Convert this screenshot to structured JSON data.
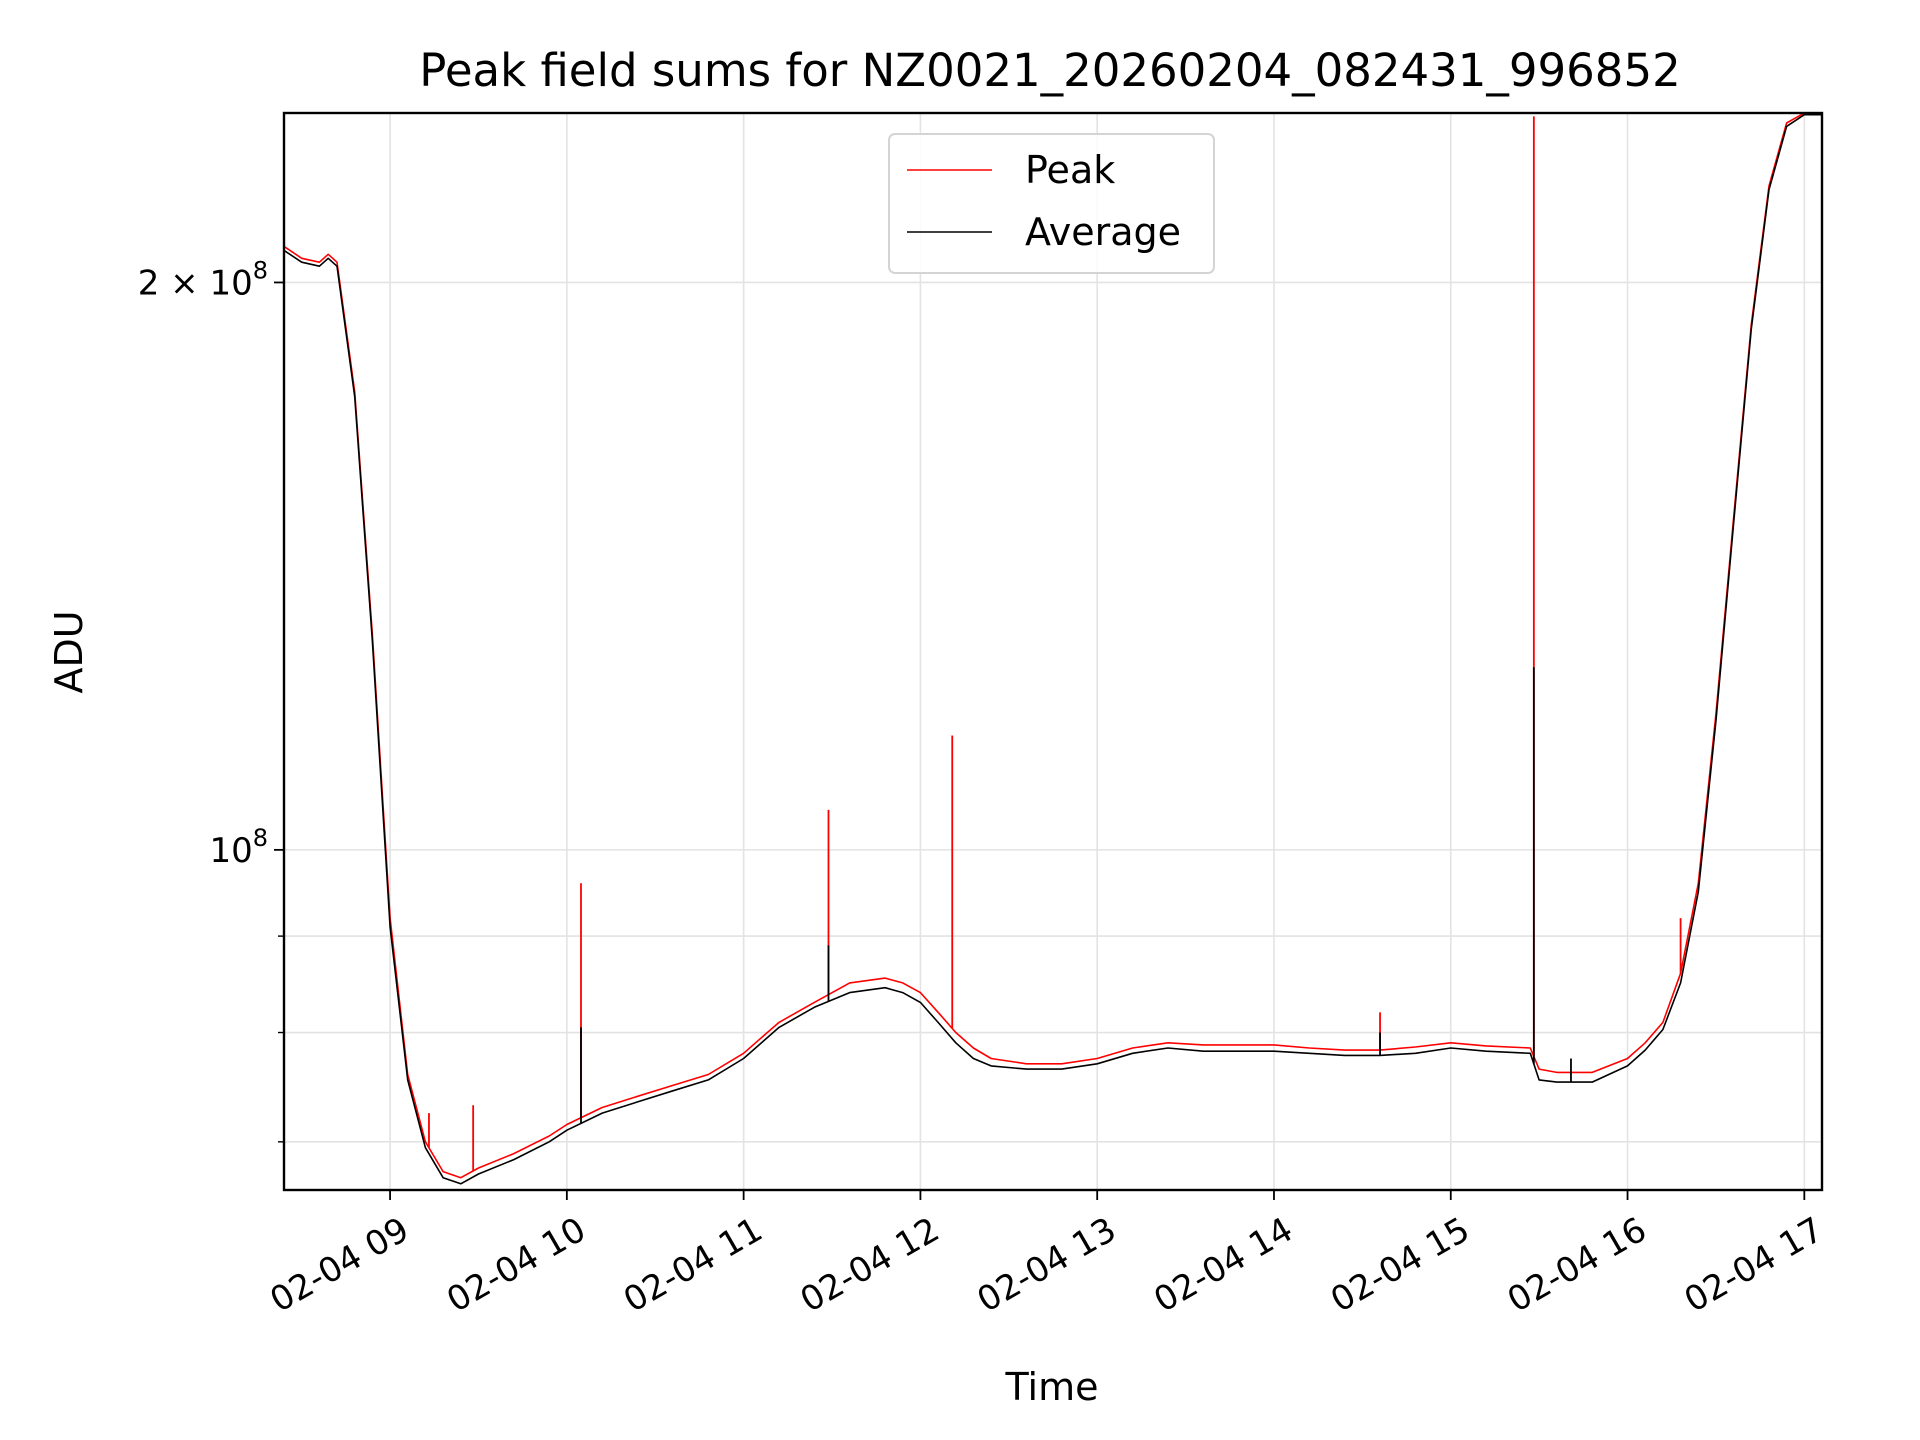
{
  "chart_data": {
    "type": "line",
    "title": "Peak field sums for NZ0021_20260204_082431_996852",
    "xlabel": "Time",
    "ylabel": "ADU",
    "yscale": "log",
    "xlim": [
      8.4,
      17.1
    ],
    "ylim": [
      66000000,
      246000000
    ],
    "grid": true,
    "legend_position": "top-center",
    "x_ticks": [
      {
        "value": 9,
        "label": "02-04 09"
      },
      {
        "value": 10,
        "label": "02-04 10"
      },
      {
        "value": 11,
        "label": "02-04 11"
      },
      {
        "value": 12,
        "label": "02-04 12"
      },
      {
        "value": 13,
        "label": "02-04 13"
      },
      {
        "value": 14,
        "label": "02-04 14"
      },
      {
        "value": 15,
        "label": "02-04 15"
      },
      {
        "value": 16,
        "label": "02-04 16"
      },
      {
        "value": 17,
        "label": "02-04 17"
      }
    ],
    "y_ticks": [
      {
        "value": 100000000,
        "base": "10",
        "exp": "8",
        "mult": ""
      },
      {
        "value": 200000000,
        "base": "10",
        "exp": "8",
        "mult": "2 × "
      }
    ],
    "y_minor_ticks": [
      70000000,
      80000000,
      90000000
    ],
    "series": [
      {
        "name": "Peak",
        "color": "#ff0000",
        "x": [
          8.4,
          8.5,
          8.6,
          8.65,
          8.7,
          8.8,
          8.9,
          9.0,
          9.1,
          9.2,
          9.3,
          9.4,
          9.5,
          9.7,
          9.9,
          10.0,
          10.2,
          10.4,
          10.6,
          10.8,
          11.0,
          11.2,
          11.4,
          11.6,
          11.8,
          11.9,
          12.0,
          12.1,
          12.2,
          12.3,
          12.4,
          12.6,
          12.8,
          13.0,
          13.2,
          13.4,
          13.6,
          13.8,
          14.0,
          14.2,
          14.4,
          14.6,
          14.8,
          15.0,
          15.2,
          15.45,
          15.5,
          15.6,
          15.8,
          16.0,
          16.1,
          16.2,
          16.3,
          16.4,
          16.5,
          16.6,
          16.7,
          16.8,
          16.9,
          17.0,
          17.1
        ],
        "y": [
          209000000,
          206000000,
          205000000,
          207000000,
          205000000,
          175000000,
          130000000,
          92000000,
          76000000,
          70000000,
          67500000,
          67000000,
          67800000,
          69000000,
          70500000,
          71500000,
          73000000,
          74000000,
          75000000,
          76000000,
          78000000,
          81000000,
          83000000,
          85000000,
          85500000,
          85000000,
          84000000,
          82000000,
          80000000,
          78500000,
          77500000,
          77000000,
          77000000,
          77500000,
          78500000,
          79000000,
          78800000,
          78800000,
          78800000,
          78500000,
          78300000,
          78300000,
          78600000,
          79000000,
          78700000,
          78500000,
          76500000,
          76200000,
          76200000,
          77500000,
          79000000,
          81000000,
          86000000,
          96000000,
          118000000,
          150000000,
          190000000,
          225000000,
          243000000,
          246000000,
          246000000
        ],
        "spikes": [
          {
            "x": 9.22,
            "y": 72500000
          },
          {
            "x": 9.47,
            "y": 73200000
          },
          {
            "x": 10.08,
            "y": 96000000
          },
          {
            "x": 11.48,
            "y": 105000000
          },
          {
            "x": 12.18,
            "y": 115000000
          },
          {
            "x": 14.6,
            "y": 82000000
          },
          {
            "x": 15.47,
            "y": 245000000
          },
          {
            "x": 16.3,
            "y": 92000000
          }
        ]
      },
      {
        "name": "Average",
        "color": "#000000",
        "x": [
          8.4,
          8.5,
          8.6,
          8.65,
          8.7,
          8.8,
          8.9,
          9.0,
          9.1,
          9.2,
          9.3,
          9.4,
          9.5,
          9.7,
          9.9,
          10.0,
          10.2,
          10.4,
          10.6,
          10.8,
          11.0,
          11.2,
          11.4,
          11.6,
          11.8,
          11.9,
          12.0,
          12.1,
          12.2,
          12.3,
          12.4,
          12.6,
          12.8,
          13.0,
          13.2,
          13.4,
          13.6,
          13.8,
          14.0,
          14.2,
          14.4,
          14.6,
          14.8,
          15.0,
          15.2,
          15.45,
          15.5,
          15.6,
          15.8,
          16.0,
          16.1,
          16.2,
          16.3,
          16.4,
          16.5,
          16.6,
          16.7,
          16.8,
          16.9,
          17.0,
          17.1
        ],
        "y": [
          208000000,
          205000000,
          204000000,
          206000000,
          204000000,
          174000000,
          129000000,
          91000000,
          75500000,
          69500000,
          67000000,
          66500000,
          67300000,
          68500000,
          70000000,
          71000000,
          72500000,
          73500000,
          74500000,
          75500000,
          77500000,
          80500000,
          82500000,
          84000000,
          84500000,
          84000000,
          83000000,
          81000000,
          79000000,
          77500000,
          76800000,
          76500000,
          76500000,
          77000000,
          78000000,
          78500000,
          78200000,
          78200000,
          78200000,
          78000000,
          77800000,
          77800000,
          78000000,
          78500000,
          78200000,
          78000000,
          75500000,
          75300000,
          75300000,
          76800000,
          78300000,
          80300000,
          85000000,
          95000000,
          117000000,
          149000000,
          189000000,
          224000000,
          242000000,
          245500000,
          245500000
        ],
        "spikes": [
          {
            "x": 10.08,
            "y": 80500000
          },
          {
            "x": 11.48,
            "y": 89000000
          },
          {
            "x": 14.6,
            "y": 80000000
          },
          {
            "x": 15.47,
            "y": 125000000
          },
          {
            "x": 15.68,
            "y": 77500000
          }
        ]
      }
    ]
  }
}
